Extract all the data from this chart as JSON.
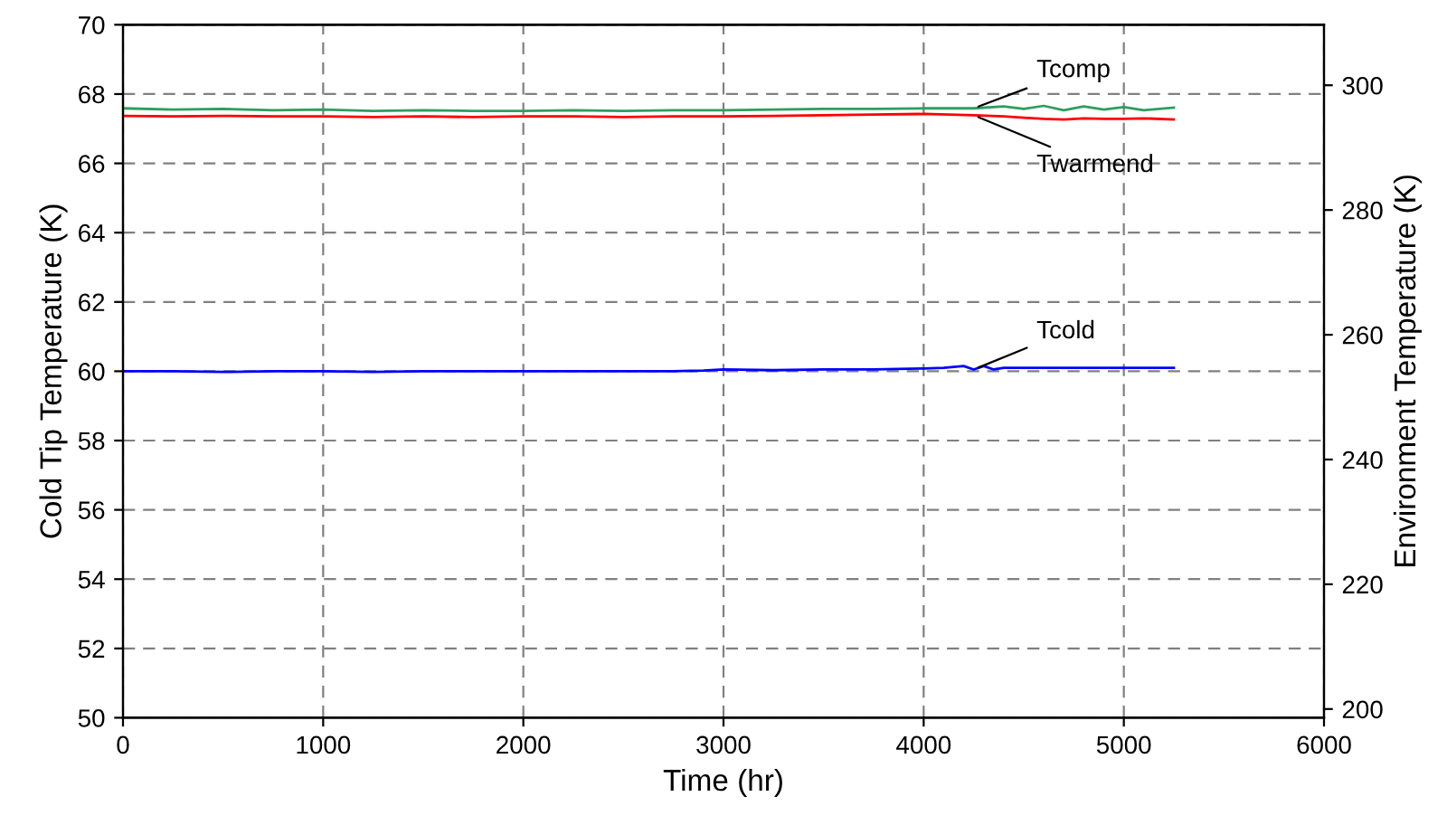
{
  "chart_data": {
    "type": "line",
    "xlabel": "Time (hr)",
    "ylabel": "Cold Tip Temperature (K)",
    "y2label": "Environment Temperature (K)",
    "xlim": [
      0,
      6000
    ],
    "xticks": [
      0,
      1000,
      2000,
      3000,
      4000,
      5000,
      6000
    ],
    "ylim": [
      50,
      70
    ],
    "yticks": [
      50,
      52,
      54,
      56,
      58,
      60,
      62,
      64,
      66,
      68,
      70
    ],
    "y2lim": [
      198.6,
      309.7
    ],
    "y2ticks": [
      200,
      220,
      240,
      260,
      280,
      300
    ],
    "grid": true,
    "legend": false,
    "line_style": "solid",
    "marker": "none",
    "series": [
      {
        "name": "Tcold",
        "color": "#0000ff",
        "axis": "y",
        "x": [
          0,
          250,
          500,
          750,
          1000,
          1250,
          1500,
          1750,
          2000,
          2250,
          2500,
          2750,
          2900,
          3000,
          3250,
          3500,
          3750,
          4000,
          4100,
          4200,
          4250,
          4300,
          4350,
          4400,
          4500,
          4750,
          5000,
          5250
        ],
        "values": [
          60.0,
          60.0,
          59.98,
          60.0,
          60.0,
          59.98,
          60.0,
          60.0,
          60.0,
          60.0,
          60.0,
          60.0,
          60.02,
          60.05,
          60.03,
          60.05,
          60.05,
          60.08,
          60.1,
          60.15,
          60.05,
          60.15,
          60.05,
          60.1,
          60.1,
          60.1,
          60.1,
          60.1
        ]
      },
      {
        "name": "Tcomp",
        "color": "#2e9e5e",
        "axis": "y2",
        "x": [
          0,
          250,
          500,
          750,
          1000,
          1250,
          1500,
          1750,
          2000,
          2250,
          2500,
          2750,
          3000,
          3250,
          3500,
          3750,
          4000,
          4250,
          4400,
          4500,
          4600,
          4700,
          4800,
          4900,
          5000,
          5100,
          5250
        ],
        "values": [
          296.3,
          296.1,
          296.2,
          296.0,
          296.1,
          295.9,
          296.0,
          295.9,
          295.9,
          296.0,
          295.9,
          296.0,
          296.0,
          296.1,
          296.2,
          296.2,
          296.3,
          296.3,
          296.6,
          296.2,
          296.7,
          296.0,
          296.6,
          296.1,
          296.5,
          296.0,
          296.4
        ]
      },
      {
        "name": "Twarmend",
        "color": "#ff0000",
        "axis": "y2",
        "x": [
          0,
          250,
          500,
          750,
          1000,
          1250,
          1500,
          1750,
          2000,
          2250,
          2500,
          2750,
          3000,
          3250,
          3500,
          3750,
          4000,
          4250,
          4400,
          4500,
          4600,
          4700,
          4800,
          4900,
          5000,
          5100,
          5250
        ],
        "values": [
          295.1,
          295.0,
          295.1,
          295.0,
          295.0,
          294.9,
          295.0,
          294.9,
          295.0,
          295.0,
          294.9,
          295.0,
          295.0,
          295.1,
          295.2,
          295.3,
          295.4,
          295.2,
          295.0,
          294.8,
          294.6,
          294.5,
          294.7,
          294.6,
          294.6,
          294.7,
          294.5
        ]
      }
    ]
  }
}
